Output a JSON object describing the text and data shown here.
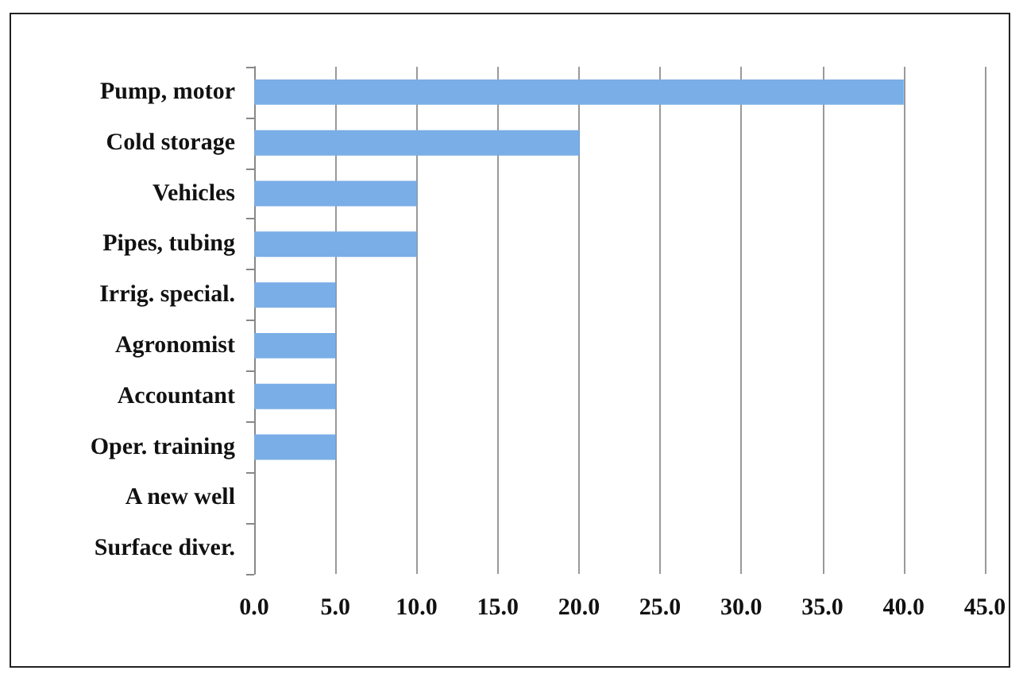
{
  "chart_data": {
    "type": "bar",
    "orientation": "horizontal",
    "categories": [
      "Pump, motor",
      "Cold storage",
      "Vehicles",
      "Pipes, tubing",
      "Irrig. special.",
      "Agronomist",
      "Accountant",
      "Oper. training",
      "A new well",
      "Surface diver."
    ],
    "values": [
      40,
      20,
      10,
      10,
      5,
      5,
      5,
      5,
      0,
      0
    ],
    "color": "#7aaee6",
    "xlim": [
      0,
      45
    ],
    "xticks": [
      {
        "value": 0,
        "label": "0.0"
      },
      {
        "value": 5,
        "label": "5.0"
      },
      {
        "value": 10,
        "label": "10.0"
      },
      {
        "value": 15,
        "label": "15.0"
      },
      {
        "value": 20,
        "label": "20.0"
      },
      {
        "value": 25,
        "label": "25.0"
      },
      {
        "value": 30,
        "label": "30.0"
      },
      {
        "value": 35,
        "label": "35.0"
      },
      {
        "value": 40,
        "label": "40.0"
      },
      {
        "value": 45,
        "label": "45.0"
      }
    ],
    "grid": "x"
  }
}
